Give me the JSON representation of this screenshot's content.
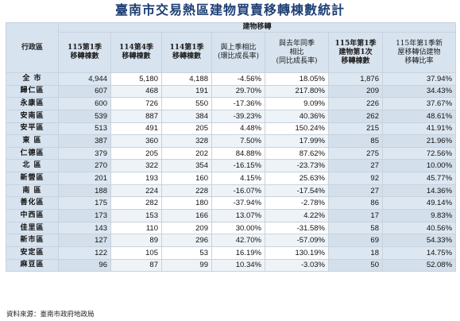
{
  "title": "臺南市交易熱區建物買賣移轉棟數統計",
  "header": {
    "district_label": "行政區",
    "group_label": "建物移轉",
    "columns": [
      "115第1季\n移轉棟數",
      "114第4季\n移轉棟數",
      "114第1季\n移轉棟數",
      "與上季相比\n(環比成長率)",
      "與去年同季\n相比\n(同比成長率)",
      "115年第1季\n建物第1次\n移轉棟數",
      "115年第1季新\n屋移轉佔建物\n移轉比率"
    ]
  },
  "rows": [
    {
      "district": "全 市",
      "q115_1": "4,944",
      "q114_4": "5,180",
      "q114_1": "4,188",
      "qoq": "-4.56%",
      "yoy": "18.05%",
      "first_transfer": "1,876",
      "new_ratio": "37.94%"
    },
    {
      "district": "歸仁區",
      "q115_1": "607",
      "q114_4": "468",
      "q114_1": "191",
      "qoq": "29.70%",
      "yoy": "217.80%",
      "first_transfer": "209",
      "new_ratio": "34.43%"
    },
    {
      "district": "永康區",
      "q115_1": "600",
      "q114_4": "726",
      "q114_1": "550",
      "qoq": "-17.36%",
      "yoy": "9.09%",
      "first_transfer": "226",
      "new_ratio": "37.67%"
    },
    {
      "district": "安南區",
      "q115_1": "539",
      "q114_4": "887",
      "q114_1": "384",
      "qoq": "-39.23%",
      "yoy": "40.36%",
      "first_transfer": "262",
      "new_ratio": "48.61%"
    },
    {
      "district": "安平區",
      "q115_1": "513",
      "q114_4": "491",
      "q114_1": "205",
      "qoq": "4.48%",
      "yoy": "150.24%",
      "first_transfer": "215",
      "new_ratio": "41.91%"
    },
    {
      "district": "東 區",
      "q115_1": "387",
      "q114_4": "360",
      "q114_1": "328",
      "qoq": "7.50%",
      "yoy": "17.99%",
      "first_transfer": "85",
      "new_ratio": "21.96%"
    },
    {
      "district": "仁德區",
      "q115_1": "379",
      "q114_4": "205",
      "q114_1": "202",
      "qoq": "84.88%",
      "yoy": "87.62%",
      "first_transfer": "275",
      "new_ratio": "72.56%"
    },
    {
      "district": "北 區",
      "q115_1": "270",
      "q114_4": "322",
      "q114_1": "354",
      "qoq": "-16.15%",
      "yoy": "-23.73%",
      "first_transfer": "27",
      "new_ratio": "10.00%"
    },
    {
      "district": "新營區",
      "q115_1": "201",
      "q114_4": "193",
      "q114_1": "160",
      "qoq": "4.15%",
      "yoy": "25.63%",
      "first_transfer": "92",
      "new_ratio": "45.77%"
    },
    {
      "district": "南 區",
      "q115_1": "188",
      "q114_4": "224",
      "q114_1": "228",
      "qoq": "-16.07%",
      "yoy": "-17.54%",
      "first_transfer": "27",
      "new_ratio": "14.36%"
    },
    {
      "district": "善化區",
      "q115_1": "175",
      "q114_4": "282",
      "q114_1": "180",
      "qoq": "-37.94%",
      "yoy": "-2.78%",
      "first_transfer": "86",
      "new_ratio": "49.14%"
    },
    {
      "district": "中西區",
      "q115_1": "173",
      "q114_4": "153",
      "q114_1": "166",
      "qoq": "13.07%",
      "yoy": "4.22%",
      "first_transfer": "17",
      "new_ratio": "9.83%"
    },
    {
      "district": "佳里區",
      "q115_1": "143",
      "q114_4": "110",
      "q114_1": "209",
      "qoq": "30.00%",
      "yoy": "-31.58%",
      "first_transfer": "58",
      "new_ratio": "40.56%"
    },
    {
      "district": "新市區",
      "q115_1": "127",
      "q114_4": "89",
      "q114_1": "296",
      "qoq": "42.70%",
      "yoy": "-57.09%",
      "first_transfer": "69",
      "new_ratio": "54.33%"
    },
    {
      "district": "安定區",
      "q115_1": "122",
      "q114_4": "105",
      "q114_1": "53",
      "qoq": "16.19%",
      "yoy": "130.19%",
      "first_transfer": "18",
      "new_ratio": "14.75%"
    },
    {
      "district": "麻豆區",
      "q115_1": "96",
      "q114_4": "87",
      "q114_1": "99",
      "qoq": "10.34%",
      "yoy": "-3.03%",
      "first_transfer": "50",
      "new_ratio": "52.08%"
    }
  ],
  "source": "資料來源：臺南市政府地政局",
  "colors": {
    "title": "#1e3f74",
    "header_bg": "#d7e3ef",
    "border": "#c7d2de"
  }
}
